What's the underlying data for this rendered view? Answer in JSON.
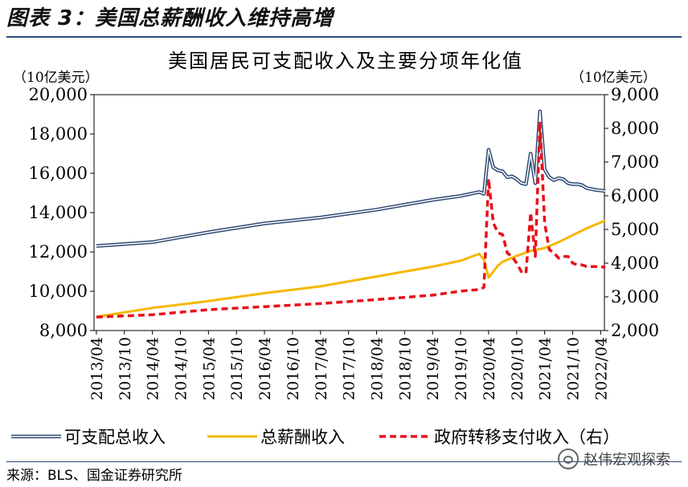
{
  "figure_label": "图表 3：美国总薪酬收入维持高增",
  "source": "来源：BLS、国金证券研究所",
  "watermark": "赵伟宏观探索",
  "chart_data": {
    "type": "line",
    "title": "美国居民可支配收入及主要分项年化值",
    "ylabel_left": "（10亿美元）",
    "ylabel_right": "（10亿美元）",
    "ylim_left": [
      8000,
      20000
    ],
    "ylim_right": [
      2000,
      9000
    ],
    "yticks_left": [
      "8,000",
      "10,000",
      "12,000",
      "14,000",
      "16,000",
      "18,000",
      "20,000"
    ],
    "yticks_right": [
      "2,000",
      "3,000",
      "4,000",
      "5,000",
      "6,000",
      "7,000",
      "8,000",
      "9,000"
    ],
    "x_start": "2013/04",
    "x_labels": [
      "2013/04",
      "2013/10",
      "2014/04",
      "2014/10",
      "2015/04",
      "2015/10",
      "2016/04",
      "2016/10",
      "2017/04",
      "2017/10",
      "2018/04",
      "2018/10",
      "2019/04",
      "2019/10",
      "2020/04",
      "2020/10",
      "2021/04",
      "2021/10",
      "2022/04"
    ],
    "legend": [
      "可支配总收入",
      "总薪酬收入",
      "政府转移支付收入（右）"
    ],
    "colors": {
      "disposable": "#2e4a73",
      "compensation": "#f5b800",
      "transfers": "#e8101a"
    },
    "series": [
      {
        "name": "可支配总收入",
        "axis": "left",
        "style": "double-line",
        "points": [
          [
            "2013/04",
            12300
          ],
          [
            "2014/04",
            12500
          ],
          [
            "2015/04",
            13000
          ],
          [
            "2016/04",
            13450
          ],
          [
            "2017/04",
            13750
          ],
          [
            "2018/04",
            14150
          ],
          [
            "2019/04",
            14650
          ],
          [
            "2019/10",
            14850
          ],
          [
            "2020/02",
            15050
          ],
          [
            "2020/03",
            14950
          ],
          [
            "2020/04",
            17200
          ],
          [
            "2020/05",
            16300
          ],
          [
            "2020/06",
            16150
          ],
          [
            "2020/07",
            16100
          ],
          [
            "2020/08",
            15800
          ],
          [
            "2020/09",
            15850
          ],
          [
            "2020/10",
            15700
          ],
          [
            "2020/11",
            15500
          ],
          [
            "2020/12",
            15450
          ],
          [
            "2021/01",
            17000
          ],
          [
            "2021/02",
            15500
          ],
          [
            "2021/03",
            19150
          ],
          [
            "2021/04",
            16200
          ],
          [
            "2021/05",
            15800
          ],
          [
            "2021/06",
            15650
          ],
          [
            "2021/07",
            15750
          ],
          [
            "2021/08",
            15700
          ],
          [
            "2021/09",
            15500
          ],
          [
            "2021/10",
            15450
          ],
          [
            "2021/11",
            15450
          ],
          [
            "2021/12",
            15400
          ],
          [
            "2022/01",
            15250
          ],
          [
            "2022/02",
            15200
          ],
          [
            "2022/03",
            15150
          ],
          [
            "2022/05",
            15100
          ]
        ]
      },
      {
        "name": "总薪酬收入",
        "axis": "left",
        "style": "solid",
        "points": [
          [
            "2013/04",
            8700
          ],
          [
            "2014/04",
            9150
          ],
          [
            "2015/04",
            9500
          ],
          [
            "2016/04",
            9900
          ],
          [
            "2017/04",
            10250
          ],
          [
            "2018/04",
            10750
          ],
          [
            "2019/04",
            11250
          ],
          [
            "2019/10",
            11550
          ],
          [
            "2020/02",
            11900
          ],
          [
            "2020/03",
            11600
          ],
          [
            "2020/04",
            10700
          ],
          [
            "2020/05",
            11000
          ],
          [
            "2020/06",
            11300
          ],
          [
            "2020/07",
            11500
          ],
          [
            "2020/10",
            11800
          ],
          [
            "2021/01",
            12050
          ],
          [
            "2021/04",
            12200
          ],
          [
            "2021/07",
            12500
          ],
          [
            "2021/10",
            12850
          ],
          [
            "2022/01",
            13200
          ],
          [
            "2022/05",
            13600
          ]
        ]
      },
      {
        "name": "政府转移支付收入（右）",
        "axis": "right",
        "style": "dashed",
        "points": [
          [
            "2013/04",
            2400
          ],
          [
            "2014/04",
            2470
          ],
          [
            "2015/04",
            2620
          ],
          [
            "2016/04",
            2710
          ],
          [
            "2017/04",
            2800
          ],
          [
            "2018/04",
            2920
          ],
          [
            "2019/04",
            3050
          ],
          [
            "2019/10",
            3170
          ],
          [
            "2020/02",
            3220
          ],
          [
            "2020/03",
            3280
          ],
          [
            "2020/04",
            6500
          ],
          [
            "2020/05",
            5200
          ],
          [
            "2020/06",
            4900
          ],
          [
            "2020/07",
            4850
          ],
          [
            "2020/08",
            4300
          ],
          [
            "2020/09",
            4200
          ],
          [
            "2020/10",
            4000
          ],
          [
            "2020/11",
            3750
          ],
          [
            "2020/12",
            3700
          ],
          [
            "2021/01",
            5500
          ],
          [
            "2021/02",
            4200
          ],
          [
            "2021/03",
            8200
          ],
          [
            "2021/04",
            5200
          ],
          [
            "2021/05",
            4400
          ],
          [
            "2021/06",
            4300
          ],
          [
            "2021/07",
            4150
          ],
          [
            "2021/08",
            4200
          ],
          [
            "2021/09",
            4200
          ],
          [
            "2021/10",
            4000
          ],
          [
            "2021/11",
            3950
          ],
          [
            "2021/12",
            3950
          ],
          [
            "2022/01",
            3900
          ],
          [
            "2022/03",
            3900
          ],
          [
            "2022/05",
            3880
          ]
        ]
      }
    ]
  }
}
